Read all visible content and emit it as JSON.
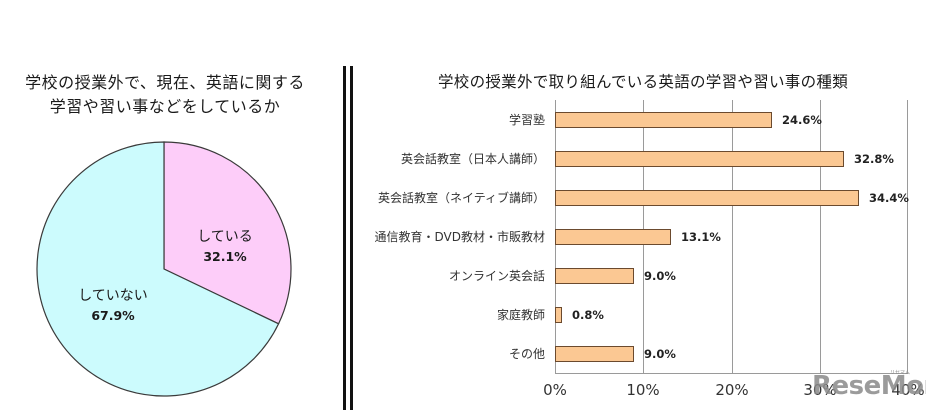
{
  "left_chart": {
    "title_line1": "学校の授業外で、現在、英語に関する",
    "title_line2": "学習や習い事などをしているか"
  },
  "right_chart": {
    "title": "学校の授業外で取り組んでいる英語の学習や習い事の種類"
  },
  "watermark": {
    "text": "ReseMom",
    "ruby": "リセマム"
  },
  "colors": {
    "pie_doing": "#fdcdf9",
    "pie_not_doing": "#ccfbfd",
    "bar_fill": "#fbc893",
    "bar_border": "#6b4a2e",
    "gridline": "#9a9a9a"
  },
  "chart_data": [
    {
      "type": "pie",
      "title": "学校の授業外で、現在、英語に関する学習や習い事などをしているか",
      "labels": [
        "している",
        "していない"
      ],
      "values": [
        32.1,
        67.9
      ],
      "value_labels": [
        "32.1%",
        "67.9%"
      ],
      "start_angle_deg": 0,
      "direction": "clockwise",
      "colors": [
        "#fdcdf9",
        "#ccfbfd"
      ],
      "legend": "none (labels inside slices)"
    },
    {
      "type": "bar",
      "orientation": "horizontal",
      "title": "学校の授業外で取り組んでいる英語の学習や習い事の種類",
      "categories": [
        "学習塾",
        "英会話教室（日本人講師）",
        "英会話教室（ネイティブ講師）",
        "通信教育・DVD教材・市販教材",
        "オンライン英会話",
        "家庭教師",
        "その他"
      ],
      "values": [
        24.6,
        32.8,
        34.4,
        13.1,
        9.0,
        0.8,
        9.0
      ],
      "value_labels": [
        "24.6%",
        "32.8%",
        "34.4%",
        "13.1%",
        "9.0%",
        "0.8%",
        "9.0%"
      ],
      "xlabel": "",
      "ylabel": "",
      "xlim": [
        0,
        40
      ],
      "x_ticks": [
        "0%",
        "10%",
        "20%",
        "30%",
        "40%"
      ],
      "grid": "vertical gridlines at each tick",
      "legend": "none"
    }
  ]
}
